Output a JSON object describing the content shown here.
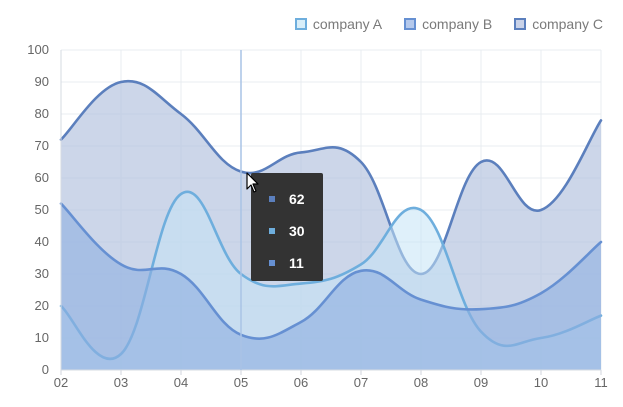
{
  "chart_data": {
    "type": "area",
    "categories": [
      "02",
      "03",
      "04",
      "05",
      "06",
      "07",
      "08",
      "09",
      "10",
      "11"
    ],
    "series": [
      {
        "name": "company A",
        "values": [
          20,
          5,
          55,
          30,
          27,
          33,
          50,
          12,
          10,
          17
        ],
        "stroke": "#6eaedd",
        "fill": "#c4e3f5"
      },
      {
        "name": "company B",
        "values": [
          52,
          33,
          30,
          11,
          15,
          31,
          22,
          19,
          24,
          40
        ],
        "stroke": "#6690d2",
        "fill": "#8eafe1"
      },
      {
        "name": "company C",
        "values": [
          72,
          90,
          80,
          62,
          68,
          65,
          30,
          65,
          50,
          78
        ],
        "stroke": "#5b7fbd",
        "fill": "#b7c4df"
      }
    ],
    "ylim": [
      0,
      100
    ],
    "yticks": [
      0,
      10,
      20,
      30,
      40,
      50,
      60,
      70,
      80,
      90,
      100
    ],
    "grid": true,
    "legend_position": "top-right",
    "hover_category": "05"
  },
  "tooltip": {
    "values": [
      {
        "label": "62",
        "color": "#5b7fbd"
      },
      {
        "label": "30",
        "color": "#6eaedd"
      },
      {
        "label": "11",
        "color": "#6690d2"
      }
    ]
  }
}
